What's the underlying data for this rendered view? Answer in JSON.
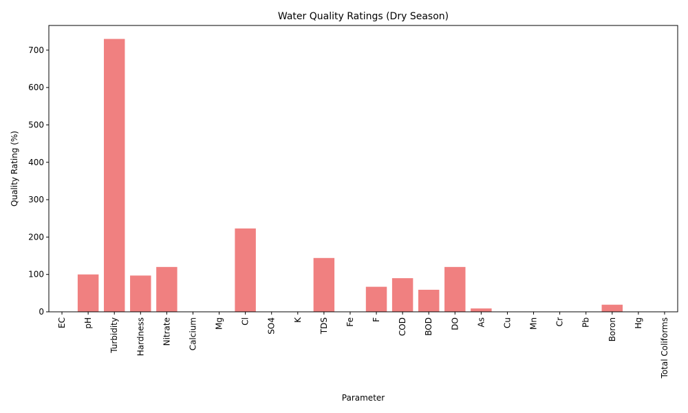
{
  "chart_data": {
    "type": "bar",
    "title": "Water Quality Ratings (Dry Season)",
    "xlabel": "Parameter",
    "ylabel": "Quality Rating (%)",
    "categories": [
      "EC",
      "pH",
      "Turbidity",
      "Hardness",
      "Nitrate",
      "Calcium",
      "Mg",
      "Cl",
      "SO4",
      "K",
      "TDS",
      "Fe",
      "F",
      "COD",
      "BOD",
      "DO",
      "As",
      "Cu",
      "Mn",
      "Cr",
      "Pb",
      "Boron",
      "Hg",
      "Total Coliforms"
    ],
    "values": [
      0,
      100,
      730,
      97,
      120,
      0,
      0,
      223,
      0,
      0,
      144,
      0,
      67,
      90,
      59,
      120,
      9,
      0,
      0,
      0,
      0,
      19,
      0,
      0
    ],
    "ylim": [
      0,
      766
    ],
    "yticks": [
      0,
      100,
      200,
      300,
      400,
      500,
      600,
      700
    ],
    "bar_color": "#f08080",
    "grid": false,
    "legend": "none"
  }
}
